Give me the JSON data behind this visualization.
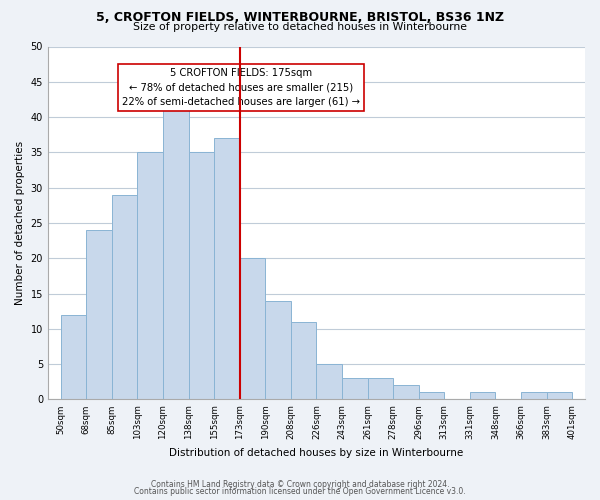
{
  "title": "5, CROFTON FIELDS, WINTERBOURNE, BRISTOL, BS36 1NZ",
  "subtitle": "Size of property relative to detached houses in Winterbourne",
  "xlabel": "Distribution of detached houses by size in Winterbourne",
  "ylabel": "Number of detached properties",
  "bin_labels": [
    "50sqm",
    "68sqm",
    "85sqm",
    "103sqm",
    "120sqm",
    "138sqm",
    "155sqm",
    "173sqm",
    "190sqm",
    "208sqm",
    "226sqm",
    "243sqm",
    "261sqm",
    "278sqm",
    "296sqm",
    "313sqm",
    "331sqm",
    "348sqm",
    "366sqm",
    "383sqm",
    "401sqm"
  ],
  "bar_values": [
    12,
    24,
    29,
    35,
    42,
    35,
    37,
    20,
    14,
    11,
    5,
    3,
    3,
    2,
    1,
    0,
    1,
    0,
    1,
    1
  ],
  "bar_color": "#c8d8eb",
  "bar_edge_color": "#8ab4d4",
  "vline_pos": 7,
  "vline_color": "#cc0000",
  "annotation_title": "5 CROFTON FIELDS: 175sqm",
  "annotation_line1": "← 78% of detached houses are smaller (215)",
  "annotation_line2": "22% of semi-detached houses are larger (61) →",
  "ylim": [
    0,
    50
  ],
  "yticks": [
    0,
    5,
    10,
    15,
    20,
    25,
    30,
    35,
    40,
    45,
    50
  ],
  "footer1": "Contains HM Land Registry data © Crown copyright and database right 2024.",
  "footer2": "Contains public sector information licensed under the Open Government Licence v3.0.",
  "bg_color": "#eef2f7",
  "plot_bg_color": "#ffffff",
  "grid_color": "#c0ccd8"
}
